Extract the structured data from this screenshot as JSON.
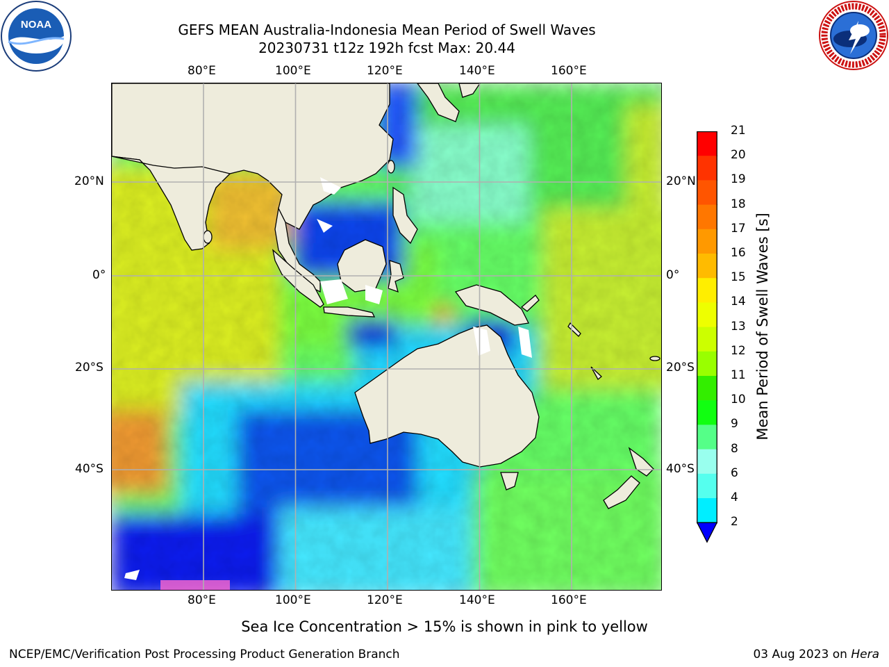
{
  "header": {
    "title_line1": "GEFS MEAN Australia-Indonesia Mean Period of Swell Waves",
    "title_line2": "20230731 t12z 192h fcst   Max: 20.44"
  },
  "logos": {
    "left": "noaa-logo",
    "right": "nws-logo",
    "left_text": "NOAA",
    "right_text": "NATIONAL WEATHER SERVICE"
  },
  "map": {
    "lon_ticks": [
      "80°E",
      "100°E",
      "120°E",
      "140°E",
      "160°E"
    ],
    "lat_ticks": [
      "20°N",
      "0°",
      "20°S",
      "40°S"
    ],
    "land_color": "#eeecdc",
    "grid_color": "#b0b0b0"
  },
  "colorbar": {
    "title": "Mean Period of Swell Waves [s]",
    "labels": [
      "21",
      "20",
      "19",
      "18",
      "17",
      "16",
      "15",
      "14",
      "13",
      "12",
      "11",
      "10",
      "9",
      "8",
      "6",
      "4",
      "2"
    ],
    "colors": [
      "#ff0000",
      "#ff3300",
      "#ff5500",
      "#ff7700",
      "#ff9900",
      "#ffbb00",
      "#ffee00",
      "#eeff00",
      "#ccff00",
      "#99ff00",
      "#33ee00",
      "#11ff11",
      "#55ff88",
      "#99ffee",
      "#55ffee",
      "#00eeff",
      "#0077ff"
    ],
    "extend_color": "#0000ff"
  },
  "notes": {
    "ice": "Sea Ice Concentration > 15% is shown in pink to yellow"
  },
  "footer": {
    "left": "NCEP/EMC/Verification Post Processing Product Generation Branch",
    "date": "03 Aug 2023 on ",
    "machine": "Hera"
  }
}
